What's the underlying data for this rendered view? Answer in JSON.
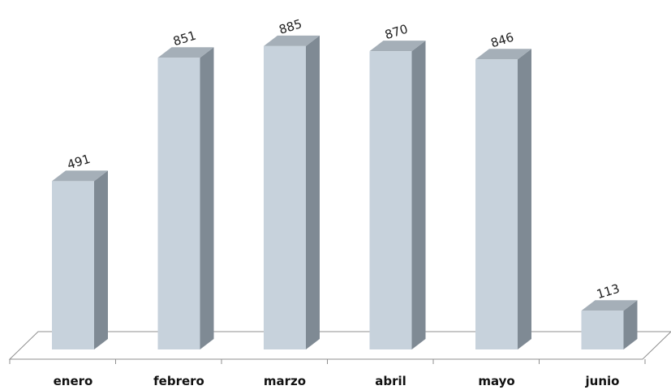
{
  "chart_data": {
    "type": "bar",
    "title": "",
    "xlabel": "",
    "ylabel": "",
    "categories": [
      "enero",
      "febrero",
      "marzo",
      "abril",
      "mayo",
      "junio"
    ],
    "values": [
      491,
      851,
      885,
      870,
      846,
      113
    ],
    "ylim": [
      0,
      900
    ],
    "style": "3d-column",
    "colors": {
      "front": "#c7d2dc",
      "side": "#7f8a94",
      "top": "#a5afb8",
      "floor_line": "#8f8f8f"
    },
    "grid": false,
    "legend": "none"
  }
}
